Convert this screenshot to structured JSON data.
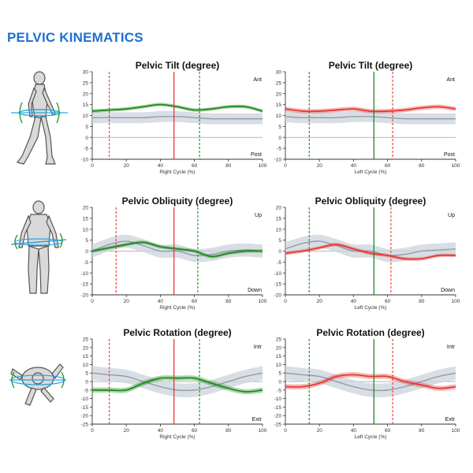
{
  "page": {
    "title": "PELVIC KINEMATICS"
  },
  "style": {
    "title_color": "#1f6fd1",
    "right_color": "#1e8a1e",
    "left_color": "#e53935",
    "normal_line_color": "#8b98a6",
    "normal_band_color": "#cfd6dd",
    "zero_line_color": "#9e9e9e"
  },
  "figures": [
    {
      "name": "walking-figure-icon",
      "description_icon": "side-walking-body-icon"
    },
    {
      "name": "front-body-figure-icon",
      "description_icon": "front-standing-body-icon"
    },
    {
      "name": "top-view-figure-icon",
      "description_icon": "top-view-body-icon"
    }
  ],
  "chart_data": [
    {
      "id": "tilt-right",
      "type": "line",
      "title": "Pelvic Tilt (degree)",
      "xlabel": "Right Cycle (%)",
      "side": "right",
      "ylim": [
        -10,
        30
      ],
      "yticks": [
        -10,
        -5,
        0,
        5,
        10,
        15,
        20,
        25,
        30
      ],
      "xlim": [
        0,
        100
      ],
      "xticks": [
        0,
        20,
        40,
        60,
        80,
        100
      ],
      "top_label": "Ant",
      "bottom_label": "Post",
      "events": {
        "opposite_foot_off": 10,
        "opposite_foot_contact": 48,
        "foot_off": 63
      },
      "x": [
        0,
        10,
        20,
        30,
        40,
        50,
        60,
        70,
        80,
        90,
        100
      ],
      "series": [
        {
          "role": "patient",
          "values": [
            12,
            12.5,
            13,
            14,
            15,
            14,
            12.5,
            13,
            14,
            14,
            12
          ],
          "band": 0.8
        },
        {
          "role": "normal",
          "values": [
            9,
            9,
            9,
            9,
            9.5,
            9.5,
            9,
            8.5,
            8.5,
            8.5,
            8.5
          ],
          "band": 2.5
        }
      ]
    },
    {
      "id": "tilt-left",
      "type": "line",
      "title": "Pelvic Tilt (degree)",
      "xlabel": "Left Cycle (%)",
      "side": "left",
      "ylim": [
        -10,
        30
      ],
      "yticks": [
        -10,
        -5,
        0,
        5,
        10,
        15,
        20,
        25,
        30
      ],
      "xlim": [
        0,
        100
      ],
      "xticks": [
        0,
        20,
        40,
        60,
        80,
        100
      ],
      "top_label": "Ant",
      "bottom_label": "Post",
      "events": {
        "opposite_foot_off": 14,
        "opposite_foot_contact": 52,
        "foot_off": 63
      },
      "x": [
        0,
        10,
        20,
        30,
        40,
        50,
        60,
        70,
        80,
        90,
        100
      ],
      "series": [
        {
          "role": "patient",
          "values": [
            13,
            12,
            12,
            12.5,
            13,
            12,
            12,
            12.5,
            13.5,
            14,
            13
          ],
          "band": 1.0
        },
        {
          "role": "normal",
          "values": [
            9.5,
            9,
            9,
            9,
            9.5,
            9.5,
            9,
            8.5,
            8.5,
            8.5,
            8.5
          ],
          "band": 2.5
        }
      ]
    },
    {
      "id": "obliquity-right",
      "type": "line",
      "title": "Pelvic Obliquity (degree)",
      "xlabel": "Right Cycle (%)",
      "side": "right",
      "ylim": [
        -20,
        20
      ],
      "yticks": [
        -20,
        -15,
        -10,
        -5,
        0,
        5,
        10,
        15,
        20
      ],
      "xlim": [
        0,
        100
      ],
      "xticks": [
        0,
        20,
        40,
        60,
        80,
        100
      ],
      "top_label": "Up",
      "bottom_label": "Down",
      "events": {
        "opposite_foot_off": 14,
        "opposite_foot_contact": 48,
        "foot_off": 62
      },
      "x": [
        0,
        10,
        20,
        30,
        40,
        50,
        60,
        70,
        80,
        90,
        100
      ],
      "series": [
        {
          "role": "patient",
          "values": [
            0,
            1.5,
            3,
            4,
            2,
            1,
            0,
            -2.5,
            -1,
            0,
            0
          ],
          "band": 0.8
        },
        {
          "role": "normal",
          "values": [
            0,
            3,
            4.5,
            2.5,
            0,
            0,
            -2,
            -1.5,
            0,
            0.5,
            0
          ],
          "band": 3
        }
      ]
    },
    {
      "id": "obliquity-left",
      "type": "line",
      "title": "Pelvic Obliquity (degree)",
      "xlabel": "Left Cycle (%)",
      "side": "left",
      "ylim": [
        -20,
        20
      ],
      "yticks": [
        -20,
        -15,
        -10,
        -5,
        0,
        5,
        10,
        15,
        20
      ],
      "xlim": [
        0,
        100
      ],
      "xticks": [
        0,
        20,
        40,
        60,
        80,
        100
      ],
      "top_label": "Up",
      "bottom_label": "Down",
      "events": {
        "opposite_foot_off": 14,
        "opposite_foot_contact": 52,
        "foot_off": 62
      },
      "x": [
        0,
        10,
        20,
        30,
        40,
        50,
        60,
        70,
        80,
        90,
        100
      ],
      "series": [
        {
          "role": "patient",
          "values": [
            -1,
            0,
            1.5,
            3,
            1,
            -1,
            -2,
            -3.5,
            -3.5,
            -2,
            -2
          ],
          "band": 0.8
        },
        {
          "role": "normal",
          "values": [
            1,
            3.5,
            4.5,
            2.5,
            0,
            0,
            -2,
            -1.5,
            0,
            0.5,
            1
          ],
          "band": 3
        }
      ]
    },
    {
      "id": "rotation-right",
      "type": "line",
      "title": "Pelvic Rotation (degree)",
      "xlabel": "Right Cycle (%)",
      "side": "right",
      "ylim": [
        -25,
        25
      ],
      "yticks": [
        -25,
        -20,
        -15,
        -10,
        -5,
        0,
        5,
        10,
        15,
        20,
        25
      ],
      "xlim": [
        0,
        100
      ],
      "xticks": [
        0,
        20,
        40,
        60,
        80,
        100
      ],
      "top_label": "Intr",
      "bottom_label": "Extr",
      "events": {
        "opposite_foot_off": 10,
        "opposite_foot_contact": 48,
        "foot_off": 63
      },
      "x": [
        0,
        10,
        20,
        30,
        40,
        50,
        60,
        70,
        80,
        90,
        100
      ],
      "series": [
        {
          "role": "patient",
          "values": [
            -5,
            -5,
            -5,
            -1,
            2,
            2,
            2,
            -1,
            -4,
            -6,
            -5
          ],
          "band": 1.5
        },
        {
          "role": "normal",
          "values": [
            5,
            4,
            3,
            0,
            -3,
            -5,
            -5,
            -3,
            0,
            3,
            5
          ],
          "band": 4
        }
      ]
    },
    {
      "id": "rotation-left",
      "type": "line",
      "title": "Pelvic Rotation (degree)",
      "xlabel": "Left Cycle (%)",
      "side": "left",
      "ylim": [
        -25,
        25
      ],
      "yticks": [
        -25,
        -20,
        -15,
        -10,
        -5,
        0,
        5,
        10,
        15,
        20,
        25
      ],
      "xlim": [
        0,
        100
      ],
      "xticks": [
        0,
        20,
        40,
        60,
        80,
        100
      ],
      "top_label": "Intr",
      "bottom_label": "Extr",
      "events": {
        "opposite_foot_off": 14,
        "opposite_foot_contact": 52,
        "foot_off": 63
      },
      "x": [
        0,
        10,
        20,
        30,
        40,
        50,
        60,
        70,
        80,
        90,
        100
      ],
      "series": [
        {
          "role": "patient",
          "values": [
            -3,
            -3,
            -1,
            3,
            4,
            3,
            3,
            0,
            -2,
            -4,
            -3
          ],
          "band": 1.5
        },
        {
          "role": "normal",
          "values": [
            5,
            4,
            3,
            0,
            -3,
            -5,
            -5,
            -3,
            0,
            3,
            5
          ],
          "band": 4
        }
      ]
    }
  ]
}
